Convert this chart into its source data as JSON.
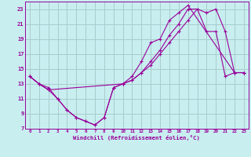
{
  "xlabel": "Windchill (Refroidissement éolien,°C)",
  "background_color": "#c8eef0",
  "grid_color": "#aacccc",
  "line_color": "#990099",
  "xlim": [
    -0.5,
    23.5
  ],
  "ylim": [
    7,
    24
  ],
  "xticks": [
    0,
    1,
    2,
    3,
    4,
    5,
    6,
    7,
    8,
    9,
    10,
    11,
    12,
    13,
    14,
    15,
    16,
    17,
    18,
    19,
    20,
    21,
    22,
    23
  ],
  "yticks": [
    7,
    9,
    11,
    13,
    15,
    17,
    19,
    21,
    23
  ],
  "line1_x": [
    0,
    1,
    2,
    3,
    4,
    5,
    6,
    7,
    8,
    9,
    10,
    11,
    12,
    13,
    14,
    15,
    16,
    17,
    22,
    23
  ],
  "line1_y": [
    14.0,
    13.0,
    12.2,
    11.0,
    9.5,
    8.5,
    8.0,
    7.5,
    8.5,
    12.5,
    13.0,
    14.0,
    16.0,
    18.5,
    19.0,
    21.5,
    22.5,
    23.5,
    14.5,
    14.5
  ],
  "line2_x": [
    0,
    1,
    2,
    10,
    11,
    12,
    13,
    14,
    15,
    16,
    17,
    18,
    19,
    20,
    21,
    22,
    23
  ],
  "line2_y": [
    14.0,
    13.0,
    12.2,
    13.0,
    13.5,
    14.5,
    16.0,
    17.5,
    19.5,
    21.0,
    23.0,
    23.0,
    22.5,
    23.0,
    20.0,
    14.5,
    14.5
  ],
  "line3_x": [
    0,
    1,
    2,
    3,
    4,
    5,
    6,
    7,
    8,
    9,
    10,
    11,
    12,
    13,
    14,
    15,
    16,
    17,
    18,
    19,
    20,
    21,
    22,
    23
  ],
  "line3_y": [
    14.0,
    13.0,
    12.5,
    11.0,
    9.5,
    8.5,
    8.0,
    7.5,
    8.5,
    12.5,
    13.0,
    13.5,
    14.5,
    15.5,
    17.0,
    18.5,
    20.0,
    21.5,
    23.0,
    20.0,
    20.0,
    14.0,
    14.5,
    14.5
  ]
}
